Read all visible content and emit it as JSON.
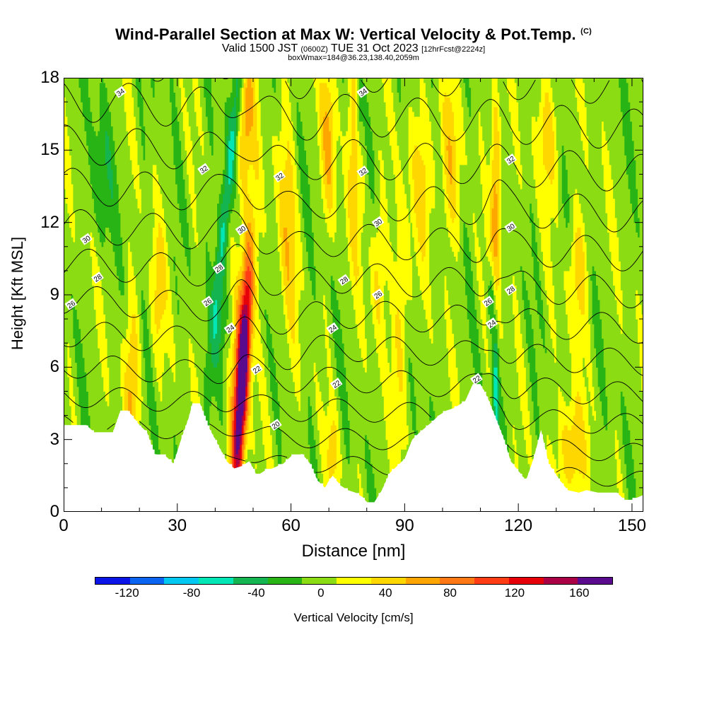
{
  "title": "Wind-Parallel Section at Max W: Vertical Velocity & Pot.Temp.",
  "title_mark": "(C)",
  "subtitle_main": "Valid 1500 JST",
  "subtitle_utc": "(0600Z)",
  "subtitle_date": "TUE 31 Oct 2023",
  "subtitle_fcst": "[12hrFcst@2224z]",
  "subtitle2": "boxWmax=184@36.23,138.40,2059m",
  "chart_data": {
    "type": "heatmap",
    "xlabel": "Distance [nm]",
    "ylabel": "Height [Kft MSL]",
    "xlim": [
      0,
      153
    ],
    "ylim": [
      0,
      18
    ],
    "x_ticks": [
      "0",
      "30",
      "60",
      "90",
      "120",
      "150"
    ],
    "y_ticks": [
      "0",
      "3",
      "6",
      "9",
      "12",
      "15",
      "18"
    ],
    "terrain": {
      "x": [
        0,
        6,
        8,
        13,
        15,
        17,
        20,
        22,
        24,
        27,
        29,
        31,
        33,
        34,
        36,
        38,
        41,
        43,
        45,
        47,
        49,
        51,
        53,
        55,
        58,
        60,
        63,
        65,
        67,
        69,
        70,
        71,
        73,
        75,
        77,
        79,
        80,
        82,
        84,
        86,
        88,
        90,
        92,
        94,
        97,
        99,
        101,
        103,
        106,
        108,
        110,
        112,
        114,
        116,
        118,
        120,
        122,
        124,
        126,
        128,
        131,
        133,
        136,
        138,
        141,
        143,
        146,
        148,
        150,
        153
      ],
      "height": [
        3.6,
        3.6,
        3.3,
        3.3,
        4.2,
        4.2,
        3.6,
        3.3,
        2.4,
        2.3,
        2.0,
        3.0,
        3.9,
        4.5,
        4.5,
        3.6,
        2.7,
        2.1,
        1.8,
        1.9,
        2.1,
        1.5,
        1.7,
        1.8,
        2.0,
        2.3,
        2.4,
        2.0,
        1.3,
        1.0,
        1.3,
        1.5,
        1.1,
        0.9,
        0.8,
        0.6,
        0.4,
        0.4,
        0.9,
        1.6,
        1.9,
        2.2,
        3.0,
        3.3,
        3.7,
        4.0,
        4.2,
        4.3,
        4.6,
        5.3,
        5.3,
        4.7,
        3.9,
        3.1,
        2.1,
        1.7,
        1.3,
        2.2,
        3.4,
        2.0,
        1.3,
        0.9,
        0.8,
        0.9,
        0.8,
        0.8,
        0.8,
        0.5,
        0.5,
        0.7
      ]
    },
    "updrafts": [
      {
        "x": 47,
        "z": 5.0,
        "value": 130,
        "width": 1.6,
        "height": 5.0,
        "tilt": 0.35
      },
      {
        "x": 47,
        "z": 6.4,
        "value": 80,
        "width": 2.4,
        "height": 6.0,
        "tilt": 0.35
      },
      {
        "x": 114,
        "z": 13.0,
        "value": 70,
        "width": 1.4,
        "height": 4.5,
        "tilt": 0.0
      },
      {
        "x": 134,
        "z": 2.5,
        "value": 55,
        "width": 3.5,
        "height": 2.2,
        "tilt": 0.0
      },
      {
        "x": 18,
        "z": 5.4,
        "value": 45,
        "width": 2.0,
        "height": 3.5,
        "tilt": 0.1
      },
      {
        "x": 48,
        "z": 16.0,
        "value": 60,
        "width": 2.0,
        "height": 3.0,
        "tilt": 0.3
      },
      {
        "x": 59,
        "z": 12.0,
        "value": 40,
        "width": 2.5,
        "height": 5.0,
        "tilt": -0.2
      },
      {
        "x": 70,
        "z": 15.5,
        "value": 50,
        "width": 2.0,
        "height": 3.5,
        "tilt": 0.0
      },
      {
        "x": 77,
        "z": 15.0,
        "value": 45,
        "width": 2.0,
        "height": 4.5,
        "tilt": 0.0
      },
      {
        "x": 89,
        "z": 8.0,
        "value": 40,
        "width": 2.0,
        "height": 5.0,
        "tilt": 0.0
      },
      {
        "x": 95,
        "z": 14.0,
        "value": 40,
        "width": 3.0,
        "height": 3.0,
        "tilt": 0.0
      },
      {
        "x": 102,
        "z": 14.5,
        "value": 40,
        "width": 2.5,
        "height": 3.5,
        "tilt": 0.0
      },
      {
        "x": 128,
        "z": 15.5,
        "value": 40,
        "width": 3.0,
        "height": 2.5,
        "tilt": 0.0
      },
      {
        "x": 71,
        "z": 2.5,
        "value": 40,
        "width": 1.5,
        "height": 1.5,
        "tilt": 0.0
      },
      {
        "x": 136,
        "z": 10.0,
        "value": 40,
        "width": 2.5,
        "height": 2.5,
        "tilt": 0.0
      },
      {
        "x": 25,
        "z": 9.0,
        "value": 35,
        "width": 2.0,
        "height": 3.0,
        "tilt": 0.0
      },
      {
        "x": 83,
        "z": 10.0,
        "value": 35,
        "width": 2.0,
        "height": 3.0,
        "tilt": 0.0
      }
    ],
    "downdrafts": [
      {
        "x": 43,
        "z": 13.0,
        "value": -60,
        "width": 1.5,
        "height": 6.0,
        "tilt": 0.6
      },
      {
        "x": 114,
        "z": 5.0,
        "value": -60,
        "width": 0.8,
        "height": 3.0,
        "tilt": 0.0
      },
      {
        "x": 113,
        "z": 9.0,
        "value": -45,
        "width": 0.9,
        "height": 1.5,
        "tilt": 0.0
      },
      {
        "x": 78,
        "z": 16.5,
        "value": -40,
        "width": 1.0,
        "height": 2.0,
        "tilt": 0.0
      },
      {
        "x": 42,
        "z": 8.0,
        "value": -30,
        "width": 2.0,
        "height": 2.0,
        "tilt": 0.0
      },
      {
        "x": 10,
        "z": 14.0,
        "value": -25,
        "width": 3.0,
        "height": 3.0,
        "tilt": 0.0
      }
    ],
    "theta_labels": [
      {
        "x": 15,
        "z": 17.4,
        "text": "34"
      },
      {
        "x": 79,
        "z": 17.4,
        "text": "34"
      },
      {
        "x": 37,
        "z": 14.2,
        "text": "32"
      },
      {
        "x": 57,
        "z": 13.9,
        "text": "32"
      },
      {
        "x": 79,
        "z": 14.1,
        "text": "32"
      },
      {
        "x": 118,
        "z": 14.6,
        "text": "32"
      },
      {
        "x": 6,
        "z": 11.3,
        "text": "30"
      },
      {
        "x": 47,
        "z": 11.7,
        "text": "30"
      },
      {
        "x": 83,
        "z": 12.0,
        "text": "30"
      },
      {
        "x": 118,
        "z": 11.8,
        "text": "30"
      },
      {
        "x": 9,
        "z": 9.7,
        "text": "28"
      },
      {
        "x": 41,
        "z": 10.1,
        "text": "28"
      },
      {
        "x": 74,
        "z": 9.6,
        "text": "28"
      },
      {
        "x": 118,
        "z": 9.2,
        "text": "28"
      },
      {
        "x": 2,
        "z": 8.6,
        "text": "26"
      },
      {
        "x": 38,
        "z": 8.7,
        "text": "26"
      },
      {
        "x": 83,
        "z": 9.0,
        "text": "26"
      },
      {
        "x": 112,
        "z": 8.7,
        "text": "26"
      },
      {
        "x": 44,
        "z": 7.6,
        "text": "24"
      },
      {
        "x": 71,
        "z": 7.6,
        "text": "24"
      },
      {
        "x": 113,
        "z": 7.8,
        "text": "24"
      },
      {
        "x": 51,
        "z": 5.9,
        "text": "22"
      },
      {
        "x": 72,
        "z": 5.3,
        "text": "22"
      },
      {
        "x": 109,
        "z": 5.5,
        "text": "22"
      },
      {
        "x": 56,
        "z": 3.6,
        "text": "20"
      }
    ],
    "colorbar": {
      "label": "Vertical Velocity [cm/s]",
      "tick_labels": [
        "-120",
        "-80",
        "-40",
        "0",
        "40",
        "80",
        "120",
        "160"
      ],
      "tick_values": [
        -120,
        -80,
        -40,
        0,
        40,
        80,
        120,
        160
      ],
      "range": [
        -140,
        180
      ],
      "colors": [
        "#0a14e6",
        "#0a64f0",
        "#00c8f0",
        "#00e6b4",
        "#14b450",
        "#28b414",
        "#8cdc14",
        "#ffff00",
        "#ffd700",
        "#ffa500",
        "#ff7814",
        "#ff3c14",
        "#e6000a",
        "#aa0046",
        "#5a0a8c"
      ],
      "bins": [
        [
          -140,
          -100
        ],
        [
          -100,
          -80
        ],
        [
          -80,
          -60
        ],
        [
          -60,
          -40
        ],
        [
          -40,
          -20
        ],
        [
          -20,
          0
        ],
        [
          0,
          20
        ],
        [
          20,
          40
        ],
        [
          40,
          60
        ],
        [
          60,
          80
        ],
        [
          80,
          100
        ],
        [
          100,
          120
        ],
        [
          120,
          140
        ],
        [
          140,
          160
        ],
        [
          160,
          180
        ]
      ]
    }
  }
}
